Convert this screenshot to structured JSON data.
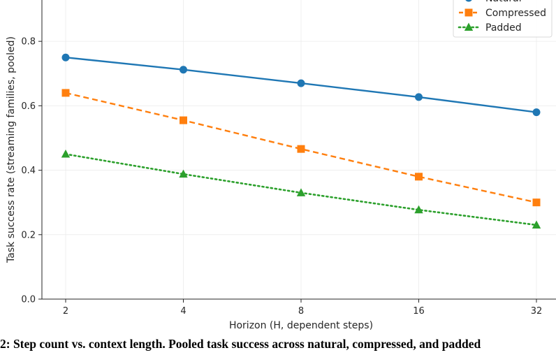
{
  "chart_data": {
    "type": "line",
    "categories": [
      "2",
      "4",
      "8",
      "16",
      "32"
    ],
    "x": [
      2,
      4,
      8,
      16,
      32
    ],
    "xscale": "log2",
    "series": [
      {
        "name": "Natural",
        "values": [
          0.75,
          0.712,
          0.67,
          0.627,
          0.58
        ],
        "color": "#1f77b4",
        "linestyle": "solid",
        "marker": "circle"
      },
      {
        "name": "Compressed",
        "values": [
          0.64,
          0.555,
          0.466,
          0.38,
          0.3
        ],
        "color": "#ff7f0e",
        "linestyle": "dashed",
        "marker": "square"
      },
      {
        "name": "Padded",
        "values": [
          0.45,
          0.388,
          0.33,
          0.277,
          0.23
        ],
        "color": "#2ca02c",
        "linestyle": "dotted",
        "marker": "triangle"
      }
    ],
    "xlabel": "Horizon (H, dependent steps)",
    "ylabel": "Task success rate (streaming families, pooled)",
    "ylim": [
      0.0,
      0.95
    ],
    "yticks": [
      "0.0",
      "0.2",
      "0.4",
      "0.6",
      "0.8"
    ],
    "grid": true,
    "legend_position": "top-right"
  },
  "caption": "2: Step count vs. context length. Pooled task success across natural, compressed, and padded"
}
